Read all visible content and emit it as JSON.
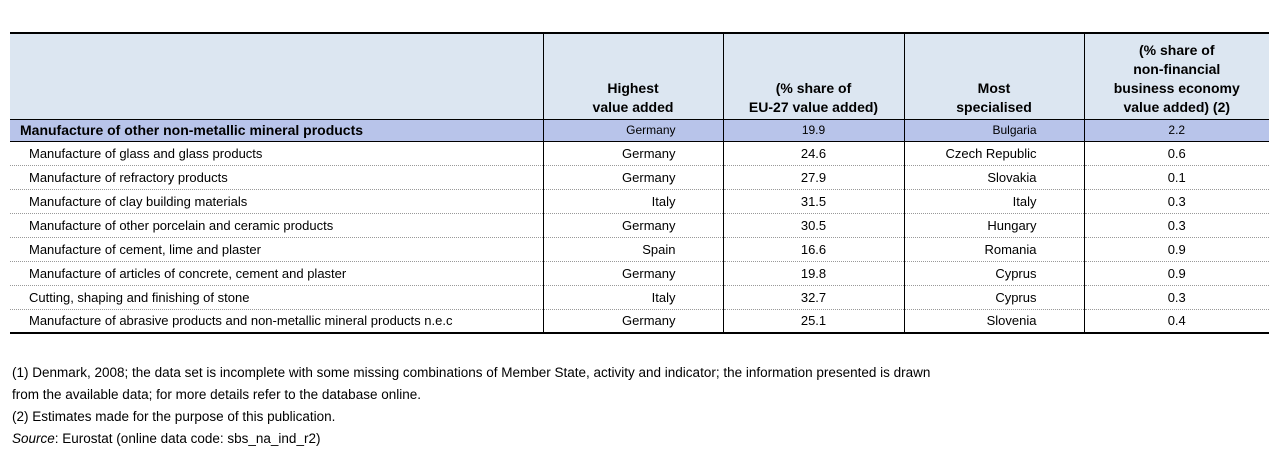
{
  "table": {
    "headers": [
      [],
      [
        "Highest",
        "value added"
      ],
      [
        "(% share of",
        "EU-27 value added)"
      ],
      [
        "Most",
        "specialised"
      ],
      [
        "(% share of",
        "non-financial",
        "business economy",
        "value added) (2)"
      ]
    ],
    "total_row": [
      "Manufacture of other non-metallic mineral products",
      "Germany",
      "19.9",
      "Bulgaria",
      "2.2"
    ],
    "rows": [
      [
        "Manufacture of glass and glass products",
        "Germany",
        "24.6",
        "Czech Republic",
        "0.6"
      ],
      [
        "Manufacture of refractory products",
        "Germany",
        "27.9",
        "Slovakia",
        "0.1"
      ],
      [
        "Manufacture of clay building materials",
        "Italy",
        "31.5",
        "Italy",
        "0.3"
      ],
      [
        "Manufacture of other porcelain and ceramic products",
        "Germany",
        "30.5",
        "Hungary",
        "0.3"
      ],
      [
        "Manufacture of cement, lime and plaster",
        "Spain",
        "16.6",
        "Romania",
        "0.9"
      ],
      [
        "Manufacture of articles of concrete, cement and plaster",
        "Germany",
        "19.8",
        "Cyprus",
        "0.9"
      ],
      [
        "Cutting, shaping and finishing of stone",
        "Italy",
        "32.7",
        "Cyprus",
        "0.3"
      ],
      [
        "Manufacture of abrasive products and non-metallic mineral products n.e.c",
        "Germany",
        "25.1",
        "Slovenia",
        "0.4"
      ]
    ]
  },
  "notes": {
    "note1_line1": "(1) Denmark, 2008; the data set is incomplete with some missing combinations of Member State, activity and indicator; the information presented is drawn",
    "note1_line2": "from the available data; for more details refer to the database online.",
    "note2": "(2) Estimates made for the purpose of this publication.",
    "source_label": "Source",
    "source_text": ": Eurostat (online data code: sbs_na_ind_r2)"
  }
}
